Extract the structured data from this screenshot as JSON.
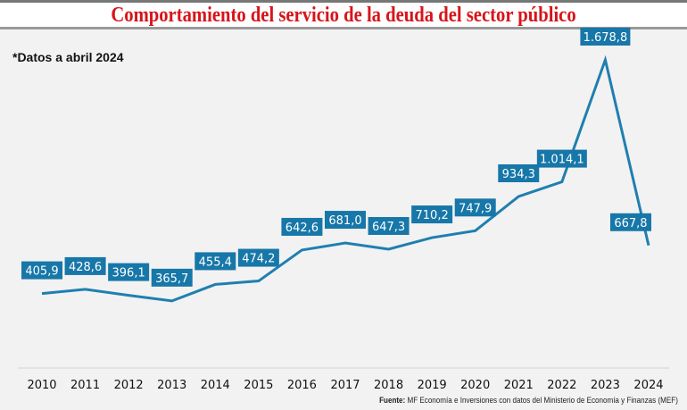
{
  "title": "Comportamiento del servicio de la deuda del sector público",
  "note": "*Datos a abril 2024",
  "source_label": "Fuente:",
  "source_text": " MF Economía e Inversiones con datos del Ministerio de Economía y Finanzas (MEF)",
  "chart_data": {
    "type": "line",
    "title": "Comportamiento del servicio de la deuda del sector público",
    "categories": [
      "2010",
      "2011",
      "2012",
      "2013",
      "2014",
      "2015",
      "2016",
      "2017",
      "2018",
      "2019",
      "2020",
      "2021",
      "2022",
      "2023",
      "2024"
    ],
    "values": [
      405.9,
      428.6,
      396.1,
      365.7,
      455.4,
      474.2,
      642.6,
      681.0,
      647.3,
      710.2,
      747.9,
      934.3,
      1014.1,
      1678.8,
      667.8
    ],
    "labels": [
      "405,9",
      "428,6",
      "396,1",
      "365,7",
      "455,4",
      "474,2",
      "642,6",
      "681,0",
      "647,3",
      "710,2",
      "747,9",
      "934,3",
      "1.014,1",
      "1.678,8",
      "667,8"
    ],
    "ylim": [
      0,
      1700
    ],
    "xlabel": "",
    "ylabel": "",
    "grid": false,
    "colors": {
      "line": "#1f7fb0",
      "label_bg": "#1777a8",
      "label_text": "#ffffff"
    }
  }
}
